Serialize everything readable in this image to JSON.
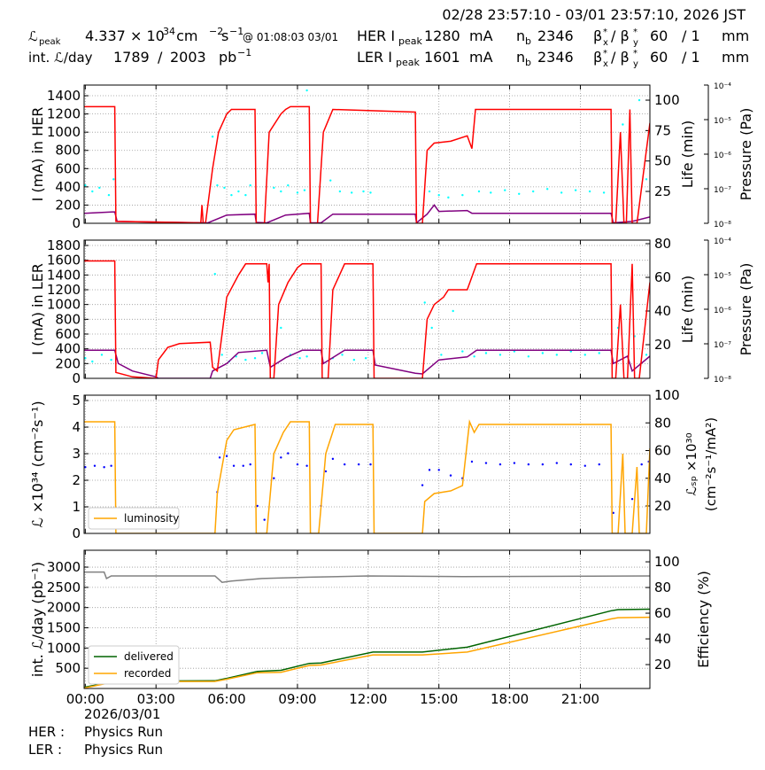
{
  "header": {
    "time_range": "02/28 23:57:10 - 03/01 23:57:10, 2026 JST",
    "row1": [
      "ℒ",
      "peak",
      4.337,
      "× 10",
      "34",
      " cm",
      "−2",
      "s",
      "−1",
      "@ 01:08:03 03/01",
      "HER I",
      "peak",
      1280,
      "mA",
      "n",
      "b",
      2346,
      "β",
      "x",
      "*",
      "/ β",
      "y",
      "*",
      60,
      "/ 1",
      "mm"
    ],
    "row2": [
      "int. ℒ/day",
      1789,
      "/",
      2003,
      "pb",
      "−1",
      "LER I",
      "peak",
      1601,
      "mA",
      "n",
      "b",
      2346,
      "β",
      "x",
      "*",
      "/ β",
      "y",
      "*",
      60,
      "/ 1",
      "mm"
    ]
  },
  "chart_data": [
    {
      "type": "line",
      "ylabel": "I (mA) in HER",
      "y2label": "Life (min)",
      "y3label": "Pressure (Pa)",
      "xlim": [
        -0.05,
        23.95
      ],
      "xticks": [
        0,
        3,
        6,
        9,
        12,
        15,
        18,
        21
      ],
      "grid": true,
      "ylim": [
        0,
        1517
      ],
      "yticks": [
        0,
        200,
        400,
        600,
        800,
        1000,
        1200,
        1400
      ],
      "y2lim": [
        -1.2,
        112.4
      ],
      "y2ticks": [
        25,
        50,
        75,
        100
      ],
      "y3log": true,
      "y3lim": [
        1e-08,
        0.0001
      ],
      "y3ticks": [
        {
          "value": 1e-08,
          "label": "10⁻⁸"
        },
        {
          "value": 1e-07,
          "label": "10⁻⁷"
        },
        {
          "value": 1e-06,
          "label": "10⁻⁶"
        },
        {
          "value": 1e-05,
          "label": "10⁻⁵"
        },
        {
          "value": 0.0001,
          "label": "10⁻⁴"
        }
      ],
      "series": [
        {
          "color": "#00ffff",
          "mode": "scatter",
          "axis": "y2",
          "x": [
            0,
            0.3,
            0.6,
            1.0,
            1.2,
            5.4,
            5.6,
            5.9,
            6.2,
            6.5,
            6.8,
            7.0,
            8.0,
            8.3,
            8.6,
            9.0,
            9.3,
            9.4,
            10.4,
            10.8,
            11.3,
            11.8,
            12.1,
            14.6,
            15.0,
            15.4,
            16.0,
            16.7,
            17.2,
            17.8,
            18.4,
            19.0,
            19.6,
            20.2,
            20.8,
            21.4,
            22.0,
            22.8,
            23.5,
            23.8
          ],
          "values": [
            30,
            25,
            28,
            22,
            35,
            70,
            30,
            28,
            22,
            25,
            22,
            30,
            28,
            25,
            30,
            24,
            26,
            108,
            34,
            25,
            24,
            25,
            24,
            25,
            22,
            20,
            22,
            25,
            24,
            26,
            23,
            25,
            27,
            24,
            26,
            25,
            24,
            80,
            100,
            35
          ]
        },
        {
          "color": "#800080",
          "mode": "line",
          "x": [
            -0.05,
            1.25,
            1.35,
            4.0,
            5.2,
            6.0,
            7.2,
            7.25,
            7.7,
            8.5,
            9.5,
            9.55,
            10.0,
            10.5,
            14.0,
            14.05,
            14.5,
            14.8,
            15.0,
            16.2,
            16.4,
            22.3,
            22.4,
            23.2,
            23.95
          ],
          "values": [
            110,
            125,
            20,
            10,
            5,
            90,
            100,
            10,
            5,
            90,
            110,
            5,
            5,
            100,
            100,
            5,
            100,
            200,
            130,
            140,
            110,
            110,
            5,
            20,
            70
          ]
        },
        {
          "color": "#ff0000",
          "mode": "line",
          "x": [
            -0.05,
            1.25,
            1.3,
            4.9,
            4.95,
            5.0,
            5.1,
            5.4,
            5.65,
            6.0,
            6.2,
            7.2,
            7.25,
            7.6,
            7.8,
            8.3,
            8.5,
            8.7,
            9.5,
            9.55,
            9.85,
            10.1,
            10.5,
            14.0,
            14.05,
            14.3,
            14.5,
            14.8,
            15.5,
            16.2,
            16.4,
            16.55,
            22.3,
            22.35,
            22.5,
            22.7,
            22.85,
            22.95,
            23.1,
            23.2,
            23.4,
            23.95
          ],
          "values": [
            1280,
            1280,
            20,
            5,
            200,
            0,
            0,
            600,
            1000,
            1200,
            1250,
            1250,
            0,
            0,
            1000,
            1200,
            1250,
            1280,
            1280,
            0,
            0,
            1000,
            1250,
            1220,
            0,
            0,
            800,
            880,
            900,
            960,
            820,
            1250,
            1250,
            0,
            0,
            1000,
            0,
            0,
            1250,
            0,
            0,
            1100
          ]
        }
      ]
    },
    {
      "type": "line",
      "ylabel": "I (mA) in LER",
      "y2label": "Life (min)",
      "y3label": "Pressure (Pa)",
      "xlim": [
        -0.05,
        23.95
      ],
      "xticks": [
        0,
        3,
        6,
        9,
        12,
        15,
        18,
        21
      ],
      "grid": true,
      "ylim": [
        0,
        1872
      ],
      "yticks": [
        0,
        200,
        400,
        600,
        800,
        1000,
        1200,
        1400,
        1600,
        1800
      ],
      "y2lim": [
        0,
        82.1
      ],
      "y2ticks": [
        20,
        40,
        60,
        80
      ],
      "y3log": true,
      "y3lim": [
        1e-08,
        0.0001
      ],
      "y3ticks": [
        {
          "value": 1e-08,
          "label": "10⁻⁸"
        },
        {
          "value": 1e-07,
          "label": "10⁻⁷"
        },
        {
          "value": 1e-06,
          "label": "10⁻⁶"
        },
        {
          "value": 1e-05,
          "label": "10⁻⁵"
        },
        {
          "value": 0.0001,
          "label": "10⁻⁴"
        }
      ],
      "series": [
        {
          "color": "#00ffff",
          "mode": "scatter",
          "axis": "y2",
          "x": [
            0,
            0.3,
            0.7,
            1.1,
            5.5,
            5.8,
            6.1,
            6.4,
            6.8,
            7.2,
            7.5,
            8.3,
            8.7,
            9.1,
            9.4,
            10.5,
            10.9,
            11.4,
            11.9,
            14.4,
            14.7,
            15.1,
            15.6,
            16.0,
            16.5,
            17.0,
            17.6,
            18.2,
            18.8,
            19.4,
            20.0,
            20.6,
            21.2,
            21.8,
            22.6,
            23.3,
            23.8
          ],
          "values": [
            12,
            10,
            14,
            11,
            62,
            14,
            10,
            13,
            11,
            12,
            15,
            30,
            14,
            12,
            13,
            12,
            14,
            11,
            12,
            45,
            30,
            14,
            40,
            16,
            13,
            15,
            14,
            16,
            13,
            15,
            14,
            16,
            14,
            15,
            30,
            25,
            14
          ]
        },
        {
          "color": "#800080",
          "mode": "line",
          "x": [
            -0.05,
            1.25,
            1.4,
            2.0,
            3.0,
            3.1,
            5.3,
            5.4,
            6.0,
            6.5,
            7.7,
            7.85,
            8.5,
            9.2,
            10.0,
            10.1,
            11.0,
            12.2,
            12.3,
            14.0,
            14.3,
            15.0,
            16.2,
            16.6,
            22.3,
            22.4,
            23.0,
            23.2,
            23.95
          ],
          "values": [
            380,
            380,
            200,
            100,
            20,
            0,
            0,
            100,
            200,
            350,
            380,
            150,
            280,
            380,
            380,
            200,
            380,
            380,
            180,
            70,
            60,
            250,
            290,
            380,
            380,
            200,
            300,
            100,
            300
          ]
        },
        {
          "color": "#ff0000",
          "mode": "line",
          "x": [
            -0.05,
            1.25,
            1.3,
            2.0,
            3.0,
            3.1,
            3.5,
            4.0,
            5.3,
            5.4,
            5.6,
            5.8,
            6.0,
            6.5,
            6.8,
            7.7,
            7.75,
            7.8,
            7.85,
            8.0,
            8.2,
            8.6,
            9.0,
            9.2,
            10.0,
            10.05,
            10.3,
            10.5,
            11.0,
            12.2,
            12.25,
            14.3,
            14.5,
            14.8,
            15.2,
            15.4,
            16.2,
            16.6,
            22.3,
            22.35,
            22.5,
            22.7,
            22.85,
            23.0,
            23.2,
            23.3,
            23.5,
            23.95
          ],
          "values": [
            1590,
            1590,
            80,
            20,
            0,
            250,
            420,
            470,
            490,
            150,
            100,
            600,
            1100,
            1400,
            1550,
            1550,
            1300,
            1550,
            0,
            0,
            1000,
            1300,
            1500,
            1550,
            1550,
            0,
            0,
            1200,
            1550,
            1550,
            0,
            0,
            800,
            1000,
            1100,
            1200,
            1200,
            1550,
            1550,
            0,
            0,
            1000,
            0,
            0,
            1550,
            0,
            0,
            1300
          ]
        }
      ]
    },
    {
      "type": "line",
      "ylabel": "ℒ ×10³⁴ (cm⁻²s⁻¹)",
      "y2label": [
        "ℒₛₚ ×10³⁰",
        "(cm⁻²s⁻¹/mA²)"
      ],
      "xlim": [
        -0.05,
        23.95
      ],
      "xticks": [
        0,
        3,
        6,
        9,
        12,
        15,
        18,
        21
      ],
      "grid": true,
      "ylim": [
        0,
        5.2
      ],
      "yticks": [
        0,
        1,
        2,
        3,
        4,
        5
      ],
      "y2lim": [
        0.16,
        100
      ],
      "y2ticks": [
        20,
        40,
        60,
        80,
        100
      ],
      "legend": "lower left",
      "series": [
        {
          "color": "#0000ff",
          "mode": "scatter",
          "axis": "y2",
          "x": [
            0,
            0.4,
            0.8,
            1.1,
            5.6,
            5.7,
            6.0,
            6.3,
            6.7,
            7.0,
            7.3,
            7.6,
            8.0,
            8.3,
            8.6,
            9.0,
            9.4,
            10.0,
            10.2,
            10.5,
            11.0,
            11.6,
            12.1,
            14.3,
            14.6,
            15.0,
            15.5,
            16.0,
            16.4,
            17,
            17.6,
            18.2,
            18.8,
            19.4,
            20,
            20.6,
            21.2,
            21.8,
            22.4,
            22.8,
            23.2,
            23.6,
            23.9
          ],
          "values": [
            48,
            49,
            48,
            49,
            30,
            55,
            56,
            49,
            49,
            50,
            20,
            10,
            40,
            55,
            58,
            50,
            49,
            20,
            45,
            54,
            50,
            50,
            50,
            35,
            46,
            46,
            42,
            40,
            52,
            51,
            50,
            51,
            50,
            50,
            51,
            50,
            49,
            50,
            15,
            48,
            25,
            50,
            52
          ]
        },
        {
          "name": "luminosity",
          "color": "#ffa500",
          "mode": "line",
          "x": [
            -0.05,
            1.25,
            1.3,
            5.5,
            5.6,
            6.0,
            6.3,
            7.2,
            7.25,
            7.7,
            8.0,
            8.4,
            8.7,
            9.5,
            9.55,
            9.9,
            10.2,
            10.6,
            12.2,
            12.25,
            14.3,
            14.4,
            14.8,
            15.5,
            16.0,
            16.3,
            16.5,
            16.7,
            22.3,
            22.35,
            22.6,
            22.8,
            22.9,
            23.2,
            23.4,
            23.5,
            23.8,
            23.95
          ],
          "values": [
            4.2,
            4.2,
            0,
            0,
            1.5,
            3.5,
            3.9,
            4.1,
            0,
            0,
            3.0,
            3.8,
            4.2,
            4.2,
            0,
            0,
            3.0,
            4.1,
            4.1,
            0,
            0,
            1.2,
            1.5,
            1.6,
            1.8,
            4.2,
            3.8,
            4.1,
            4.1,
            0,
            0,
            3.0,
            0,
            0,
            2.5,
            0,
            0,
            3.2
          ]
        }
      ]
    },
    {
      "type": "line",
      "ylabel": "int. ℒ/day (pb⁻¹)",
      "y2label": "Efficiency (%)",
      "xlim": [
        -0.05,
        23.95
      ],
      "xticks": [
        {
          "value": 0,
          "label": "00:00"
        },
        {
          "value": 3,
          "label": "03:00"
        },
        {
          "value": 6,
          "label": "06:00"
        },
        {
          "value": 9,
          "label": "09:00"
        },
        {
          "value": 12,
          "label": "12:00"
        },
        {
          "value": 15,
          "label": "15:00"
        },
        {
          "value": 18,
          "label": "18:00"
        },
        {
          "value": 21,
          "label": "21:00"
        }
      ],
      "grid": true,
      "ylim": [
        0,
        3417
      ],
      "yticks": [
        500,
        1000,
        1500,
        2000,
        2500,
        3000
      ],
      "y2lim": [
        1.4,
        109
      ],
      "y2ticks": [
        20,
        40,
        60,
        80,
        100
      ],
      "legend": "lower left",
      "series": [
        {
          "color": "#808080",
          "mode": "line",
          "axis": "y2",
          "x": [
            -0.05,
            0.8,
            0.9,
            1.1,
            5.5,
            5.8,
            6.2,
            7.5,
            9.5,
            12,
            16,
            23.95
          ],
          "values": [
            92,
            92,
            87,
            89,
            89,
            84,
            85,
            87,
            88,
            89,
            88.5,
            89
          ]
        },
        {
          "name": "delivered",
          "color": "#006400",
          "mode": "line",
          "x": [
            -0.05,
            1.3,
            5.5,
            6.0,
            7.3,
            8.3,
            9.5,
            10.0,
            12.2,
            14.3,
            16.2,
            22.3,
            22.6,
            23.95
          ],
          "values": [
            30,
            180,
            190,
            250,
            420,
            450,
            620,
            630,
            900,
            900,
            1020,
            1920,
            1950,
            1960
          ]
        },
        {
          "name": "recorded",
          "color": "#ffa500",
          "mode": "line",
          "x": [
            -0.05,
            1.3,
            5.5,
            6.0,
            7.3,
            8.3,
            9.5,
            10.0,
            12.2,
            14.3,
            16.2,
            22.3,
            22.6,
            23.95
          ],
          "values": [
            10,
            170,
            175,
            230,
            390,
            400,
            570,
            580,
            830,
            830,
            900,
            1720,
            1750,
            1760
          ]
        }
      ]
    }
  ],
  "footer": {
    "date": "2026/03/01",
    "her_label": "HER :",
    "her_mode": "Physics Run",
    "ler_label": "LER :",
    "ler_mode": "Physics Run"
  }
}
